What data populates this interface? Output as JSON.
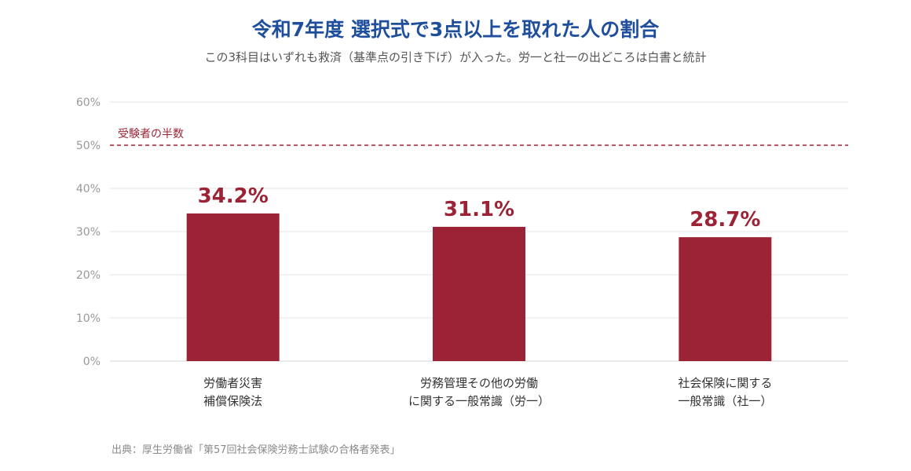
{
  "chart_data": {
    "type": "bar",
    "title": "令和7年度 選択式で3点以上を取れた人の割合",
    "subtitle": "この3科目はいずれも救済（基準点の引き下げ）が入った。労一と社一の出どころは白書と統計",
    "categories": [
      [
        "労働者災害",
        "補償保険法"
      ],
      [
        "労務管理その他の労働",
        "に関する一般常識（労一）"
      ],
      [
        "社会保険に関する",
        "一般常識（社一）"
      ]
    ],
    "values": [
      34.2,
      31.1,
      28.7
    ],
    "value_labels": [
      "34.2%",
      "31.1%",
      "28.7%"
    ],
    "ylim": [
      0,
      60
    ],
    "yticks": [
      0,
      10,
      20,
      30,
      40,
      50,
      60
    ],
    "ytick_labels": [
      "0%",
      "10%",
      "20%",
      "30%",
      "40%",
      "50%",
      "60%"
    ],
    "grid": true,
    "reference_line": {
      "value": 50,
      "label": "受験者の半数",
      "style": "dashed"
    },
    "colors": {
      "bar": "#9b2335",
      "reference": "#9b2335",
      "grid": "#e6e6e6",
      "tick_text": "#999999"
    },
    "source": "出典：厚生労働省「第57回社会保険労務士試験の合格者発表」"
  }
}
